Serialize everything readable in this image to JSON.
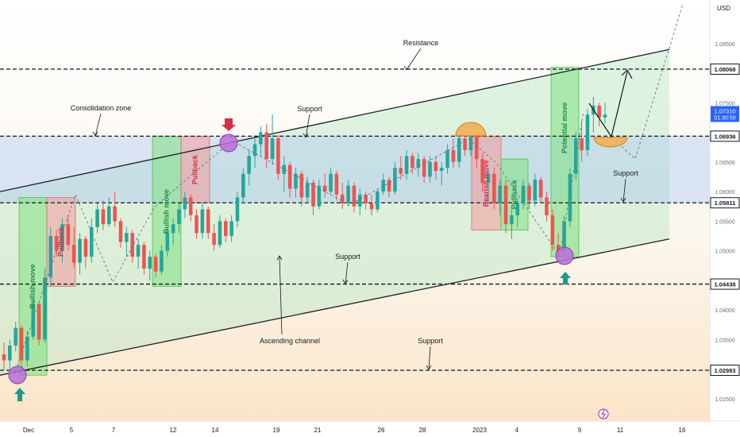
{
  "chart_data": {
    "type": "candlestick",
    "currency_label": "USD",
    "ylim": [
      1.02,
      1.095
    ],
    "x_ticks": [
      "Dec",
      "5",
      "7",
      "12",
      "14",
      "19",
      "21",
      "26",
      "28",
      "2023",
      "4",
      "9",
      "11",
      "16"
    ],
    "y_ticks": [
      "1.08500",
      "1.07500",
      "1.06500",
      "1.06000",
      "1.05500",
      "1.05000",
      "1.04000",
      "1.03500",
      "1.02500"
    ],
    "levels": [
      {
        "value": 1.08068,
        "label": "1.08068"
      },
      {
        "value": 1.06936,
        "label": "1.06936"
      },
      {
        "value": 1.05811,
        "label": "1.05811"
      },
      {
        "value": 1.04438,
        "label": "1.04438"
      },
      {
        "value": 1.02983,
        "label": "1.02983"
      }
    ],
    "last_price": {
      "value": 1.0731,
      "label": "1.07310",
      "countdown": "01:30:50"
    },
    "channel": {
      "upper_start": 1.06,
      "upper_end": 1.084,
      "lower_start": 1.029,
      "lower_end": 1.052
    },
    "boxes": [
      {
        "label": "Bullish move",
        "kind": "bull"
      },
      {
        "label": "Pullback",
        "kind": "pull"
      },
      {
        "label": "Bullish move",
        "kind": "bull"
      },
      {
        "label": "Pullback",
        "kind": "pull"
      },
      {
        "label": "Bearish move",
        "kind": "pull"
      },
      {
        "label": "Pullback",
        "kind": "bull"
      },
      {
        "label": "Potential move",
        "kind": "bull"
      }
    ],
    "annotations": [
      "Resistance",
      "Consolidation zone",
      "Support",
      "Support",
      "Support",
      "Ascending channel",
      "Support"
    ],
    "candles": [
      [
        1.0325,
        1.0345,
        1.03,
        1.0315
      ],
      [
        1.0315,
        1.035,
        1.03,
        1.034
      ],
      [
        1.034,
        1.038,
        1.033,
        1.037
      ],
      [
        1.037,
        1.0375,
        1.03,
        1.0315
      ],
      [
        1.0315,
        1.0365,
        1.0305,
        1.0355
      ],
      [
        1.0355,
        1.042,
        1.035,
        1.041
      ],
      [
        1.041,
        1.0415,
        1.034,
        1.035
      ],
      [
        1.035,
        1.047,
        1.0345,
        1.0455
      ],
      [
        1.0455,
        1.054,
        1.044,
        1.0525
      ],
      [
        1.0525,
        1.0535,
        1.049,
        1.05
      ],
      [
        1.05,
        1.0555,
        1.048,
        1.0545
      ],
      [
        1.0545,
        1.056,
        1.05,
        1.051
      ],
      [
        1.051,
        1.054,
        1.047,
        1.048
      ],
      [
        1.048,
        1.053,
        1.046,
        1.052
      ],
      [
        1.052,
        1.0525,
        1.047,
        1.049
      ],
      [
        1.049,
        1.0555,
        1.048,
        1.054
      ],
      [
        1.054,
        1.058,
        1.053,
        1.057
      ],
      [
        1.057,
        1.0585,
        1.0535,
        1.0545
      ],
      [
        1.0545,
        1.059,
        1.054,
        1.0575
      ],
      [
        1.0575,
        1.06,
        1.054,
        1.055
      ],
      [
        1.055,
        1.0555,
        1.0505,
        1.0515
      ],
      [
        1.0515,
        1.054,
        1.049,
        1.053
      ],
      [
        1.053,
        1.0535,
        1.048,
        1.049
      ],
      [
        1.049,
        1.052,
        1.047,
        1.051
      ],
      [
        1.051,
        1.0515,
        1.046,
        1.047
      ],
      [
        1.047,
        1.05,
        1.045,
        1.049
      ],
      [
        1.049,
        1.0495,
        1.0455,
        1.0465
      ],
      [
        1.0465,
        1.051,
        1.046,
        1.05
      ],
      [
        1.05,
        1.054,
        1.049,
        1.053
      ],
      [
        1.053,
        1.0555,
        1.051,
        1.0545
      ],
      [
        1.0545,
        1.058,
        1.053,
        1.057
      ],
      [
        1.057,
        1.06,
        1.0555,
        1.059
      ],
      [
        1.059,
        1.0595,
        1.055,
        1.056
      ],
      [
        1.056,
        1.057,
        1.052,
        1.053
      ],
      [
        1.053,
        1.058,
        1.052,
        1.057
      ],
      [
        1.057,
        1.0575,
        1.052,
        1.053
      ],
      [
        1.053,
        1.0545,
        1.05,
        1.051
      ],
      [
        1.051,
        1.056,
        1.0505,
        1.055
      ],
      [
        1.055,
        1.0555,
        1.0515,
        1.0525
      ],
      [
        1.0525,
        1.056,
        1.0515,
        1.055
      ],
      [
        1.055,
        1.06,
        1.054,
        1.059
      ],
      [
        1.059,
        1.064,
        1.058,
        1.063
      ],
      [
        1.063,
        1.067,
        1.061,
        1.066
      ],
      [
        1.066,
        1.069,
        1.064,
        1.068
      ],
      [
        1.068,
        1.071,
        1.066,
        1.07
      ],
      [
        1.07,
        1.0715,
        1.064,
        1.0655
      ],
      [
        1.0655,
        1.073,
        1.0645,
        1.069
      ],
      [
        1.069,
        1.0695,
        1.062,
        1.063
      ],
      [
        1.063,
        1.066,
        1.06,
        1.0645
      ],
      [
        1.0645,
        1.065,
        1.059,
        1.0605
      ],
      [
        1.0605,
        1.064,
        1.059,
        1.063
      ],
      [
        1.063,
        1.0635,
        1.0575,
        1.059
      ],
      [
        1.059,
        1.0625,
        1.058,
        1.0615
      ],
      [
        1.0615,
        1.062,
        1.056,
        1.0575
      ],
      [
        1.0575,
        1.062,
        1.057,
        1.061
      ],
      [
        1.061,
        1.063,
        1.059,
        1.06
      ],
      [
        1.06,
        1.064,
        1.0595,
        1.063
      ],
      [
        1.063,
        1.0635,
        1.0585,
        1.0595
      ],
      [
        1.0595,
        1.0615,
        1.057,
        1.058
      ],
      [
        1.058,
        1.062,
        1.0575,
        1.061
      ],
      [
        1.061,
        1.0615,
        1.0565,
        1.0575
      ],
      [
        1.0575,
        1.0605,
        1.056,
        1.0595
      ],
      [
        1.0595,
        1.06,
        1.057,
        1.058
      ],
      [
        1.058,
        1.0595,
        1.056,
        1.057
      ],
      [
        1.057,
        1.0605,
        1.0565,
        1.06
      ],
      [
        1.06,
        1.063,
        1.0595,
        1.062
      ],
      [
        1.062,
        1.0625,
        1.059,
        1.06
      ],
      [
        1.06,
        1.065,
        1.0595,
        1.064
      ],
      [
        1.064,
        1.066,
        1.062,
        1.063
      ],
      [
        1.063,
        1.067,
        1.062,
        1.066
      ],
      [
        1.066,
        1.0665,
        1.063,
        1.064
      ],
      [
        1.064,
        1.0665,
        1.0625,
        1.0655
      ],
      [
        1.0655,
        1.066,
        1.0615,
        1.0625
      ],
      [
        1.0625,
        1.066,
        1.0615,
        1.065
      ],
      [
        1.065,
        1.066,
        1.062,
        1.0635
      ],
      [
        1.0635,
        1.065,
        1.061,
        1.064
      ],
      [
        1.064,
        1.068,
        1.063,
        1.067
      ],
      [
        1.067,
        1.069,
        1.064,
        1.065
      ],
      [
        1.065,
        1.07,
        1.064,
        1.069
      ],
      [
        1.069,
        1.071,
        1.066,
        1.067
      ],
      [
        1.067,
        1.0715,
        1.066,
        1.07
      ],
      [
        1.07,
        1.0705,
        1.064,
        1.0655
      ],
      [
        1.0655,
        1.0665,
        1.06,
        1.0615
      ],
      [
        1.0615,
        1.064,
        1.058,
        1.063
      ],
      [
        1.063,
        1.064,
        1.057,
        1.058
      ],
      [
        1.058,
        1.062,
        1.056,
        1.061
      ],
      [
        1.061,
        1.062,
        1.053,
        1.0545
      ],
      [
        1.0545,
        1.057,
        1.052,
        1.056
      ],
      [
        1.056,
        1.059,
        1.054,
        1.058
      ],
      [
        1.058,
        1.062,
        1.057,
        1.061
      ],
      [
        1.061,
        1.0615,
        1.057,
        1.0585
      ],
      [
        1.0585,
        1.063,
        1.0575,
        1.062
      ],
      [
        1.062,
        1.0625,
        1.058,
        1.059
      ],
      [
        1.059,
        1.06,
        1.055,
        1.056
      ],
      [
        1.056,
        1.057,
        1.05,
        1.051
      ],
      [
        1.051,
        1.053,
        1.048,
        1.05
      ],
      [
        1.05,
        1.056,
        1.0495,
        1.055
      ],
      [
        1.055,
        1.064,
        1.054,
        1.063
      ],
      [
        1.063,
        1.07,
        1.062,
        1.069
      ],
      [
        1.069,
        1.072,
        1.065,
        1.067
      ],
      [
        1.067,
        1.074,
        1.066,
        1.073
      ],
      [
        1.073,
        1.076,
        1.07,
        1.0745
      ],
      [
        1.0745,
        1.075,
        1.071,
        1.0725
      ],
      [
        1.0725,
        1.075,
        1.0715,
        1.073
      ]
    ]
  }
}
